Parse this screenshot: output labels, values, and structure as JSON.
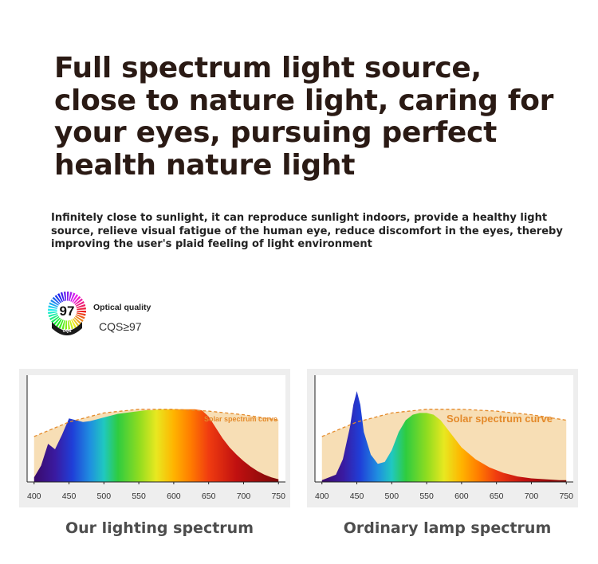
{
  "headline": "Full spectrum light source, close to nature light, caring for your eyes, pursuing perfect health nature light",
  "subtext": "Infinitely close to sunlight, it can reproduce sunlight indoors, provide a healthy light source, relieve visual fatigue of the human eye, reduce discomfort in the eyes, thereby improving the user's plaid feeling of light environment",
  "badge": {
    "number": "97",
    "ring_text": "CQS",
    "label": "Optical quality",
    "value": "CQS≥97"
  },
  "colors": {
    "headline": "#2a1a14",
    "solar_curve": "#e48a2b",
    "solar_fill": "#f6d8a8"
  },
  "chart_data": [
    {
      "type": "area",
      "caption": "Our lighting spectrum",
      "curve_label": "Solar spectrum curve",
      "x_ticks": [
        400,
        450,
        500,
        550,
        600,
        650,
        700,
        750
      ],
      "xlim": [
        390,
        760
      ],
      "series": [
        {
          "name": "",
          "x": [
            400,
            410,
            420,
            430,
            440,
            450,
            460,
            470,
            480,
            490,
            500,
            510,
            520,
            530,
            540,
            550,
            560,
            570,
            580,
            590,
            600,
            610,
            620,
            630,
            640,
            650,
            660,
            670,
            680,
            690,
            700,
            710,
            720,
            730,
            740,
            750
          ],
          "y": [
            0.05,
            0.18,
            0.42,
            0.36,
            0.52,
            0.7,
            0.68,
            0.66,
            0.67,
            0.69,
            0.71,
            0.73,
            0.75,
            0.76,
            0.77,
            0.78,
            0.79,
            0.79,
            0.8,
            0.8,
            0.8,
            0.8,
            0.8,
            0.8,
            0.79,
            0.72,
            0.6,
            0.48,
            0.38,
            0.3,
            0.23,
            0.17,
            0.12,
            0.08,
            0.05,
            0.03
          ]
        },
        {
          "name": "Solar spectrum curve",
          "x": [
            400,
            450,
            500,
            550,
            600,
            650,
            700,
            750
          ],
          "y": [
            0.5,
            0.66,
            0.76,
            0.8,
            0.8,
            0.78,
            0.74,
            0.68
          ]
        }
      ]
    },
    {
      "type": "area",
      "caption": "Ordinary lamp spectrum",
      "curve_label": "Solar spectrum curve",
      "x_ticks": [
        400,
        450,
        500,
        550,
        600,
        650,
        700,
        750
      ],
      "xlim": [
        390,
        760
      ],
      "series": [
        {
          "name": "",
          "x": [
            400,
            420,
            430,
            440,
            445,
            450,
            455,
            460,
            470,
            480,
            490,
            500,
            510,
            520,
            530,
            540,
            550,
            560,
            570,
            580,
            590,
            600,
            620,
            640,
            660,
            680,
            700,
            720,
            740,
            750
          ],
          "y": [
            0.02,
            0.08,
            0.25,
            0.6,
            0.85,
            1.0,
            0.85,
            0.55,
            0.3,
            0.2,
            0.22,
            0.35,
            0.55,
            0.68,
            0.74,
            0.76,
            0.76,
            0.74,
            0.68,
            0.58,
            0.48,
            0.38,
            0.25,
            0.16,
            0.1,
            0.06,
            0.04,
            0.03,
            0.02,
            0.02
          ]
        },
        {
          "name": "Solar spectrum curve",
          "x": [
            400,
            450,
            500,
            550,
            600,
            650,
            700,
            750
          ],
          "y": [
            0.5,
            0.66,
            0.76,
            0.8,
            0.8,
            0.78,
            0.74,
            0.68
          ]
        }
      ]
    }
  ]
}
